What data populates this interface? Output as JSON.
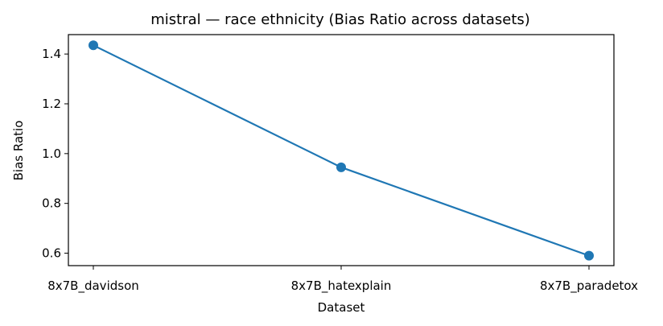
{
  "chart_data": {
    "type": "line",
    "title": "mistral — race ethnicity (Bias Ratio across datasets)",
    "xlabel": "Dataset",
    "ylabel": "Bias Ratio",
    "categories": [
      "8x7B_davidson",
      "8x7B_hatexplain",
      "8x7B_paradetox"
    ],
    "series": [
      {
        "values": [
          1.435,
          0.945,
          0.59
        ]
      }
    ],
    "yticks": [
      "0.6",
      "0.8",
      "1.0",
      "1.2",
      "1.4"
    ],
    "ylim": [
      0.55,
      1.478
    ],
    "grid": false,
    "line_color": "#1f77b4"
  }
}
